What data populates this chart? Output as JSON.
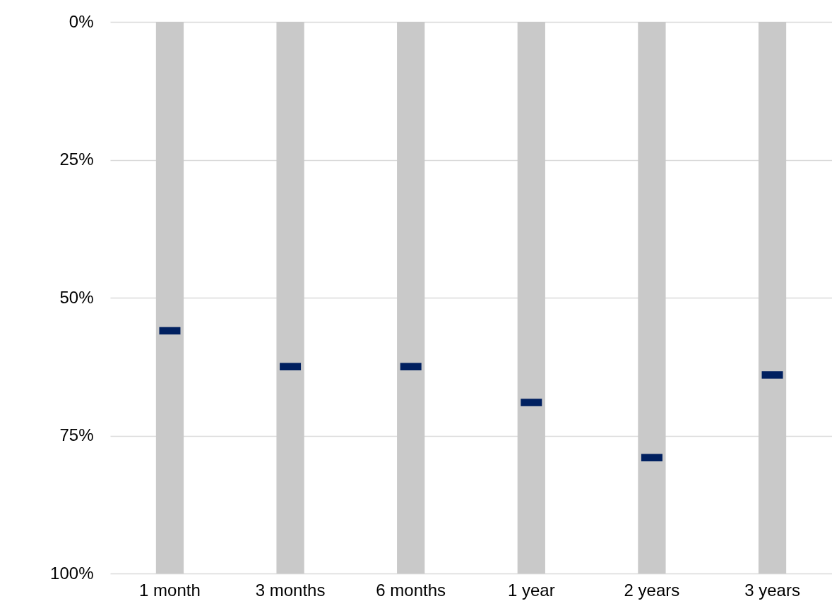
{
  "chart_data": {
    "type": "bar",
    "categories": [
      "1 month",
      "3 months",
      "6 months",
      "1 year",
      "2 years",
      "3 years"
    ],
    "series": [
      {
        "color": "#c9c9c9",
        "values": [
          100,
          100,
          100,
          100,
          100,
          100
        ]
      },
      {
        "type": "scatter",
        "color": "#002060",
        "values": [
          56,
          62.5,
          62.5,
          69,
          79,
          64
        ]
      }
    ],
    "ylim": [
      100,
      0
    ],
    "yticks": [
      {
        "value": 0,
        "label": "0%"
      },
      {
        "value": 25,
        "label": "25%"
      },
      {
        "value": 50,
        "label": "50%"
      },
      {
        "value": 75,
        "label": "75%"
      },
      {
        "value": 100,
        "label": "100%"
      }
    ],
    "grid": "y"
  }
}
